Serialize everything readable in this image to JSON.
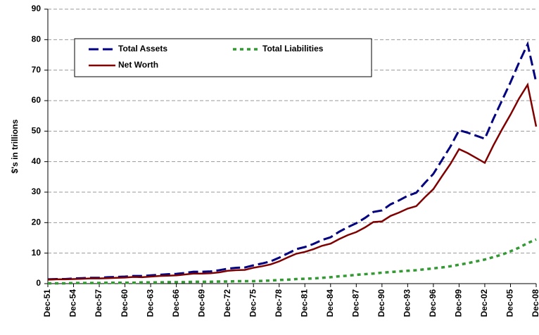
{
  "chart_data": {
    "type": "line",
    "y_label": "$'s in trillions",
    "categories": [
      "Dec-51",
      null,
      null,
      "Dec-54",
      null,
      null,
      "Dec-57",
      null,
      null,
      "Dec-60",
      null,
      null,
      "Dec-63",
      null,
      null,
      "Dec-66",
      null,
      null,
      "Dec-69",
      null,
      null,
      "Dec-72",
      null,
      null,
      "Dec-75",
      null,
      null,
      "Dec-78",
      null,
      null,
      "Dec-81",
      null,
      null,
      "Dec-84",
      null,
      null,
      "Dec-87",
      null,
      null,
      "Dec-90",
      null,
      null,
      "Dec-93",
      null,
      null,
      "Dec-96",
      null,
      null,
      "Dec-99",
      null,
      null,
      "Dec-02",
      null,
      null,
      "Dec-05",
      null,
      null,
      "Dec-08"
    ],
    "series": [
      {
        "name": "Total Assets",
        "color": "#000080",
        "style": "dashed",
        "values": [
          1.4,
          1.5,
          1.5,
          1.7,
          1.8,
          1.9,
          1.9,
          2.1,
          2.2,
          2.3,
          2.5,
          2.5,
          2.7,
          2.9,
          3.1,
          3.2,
          3.5,
          3.9,
          3.9,
          4.0,
          4.4,
          4.9,
          5.2,
          5.3,
          6.0,
          6.6,
          7.3,
          8.5,
          9.9,
          11.3,
          12.0,
          13.0,
          14.3,
          15.2,
          17.0,
          18.5,
          19.8,
          21.5,
          23.5,
          24.0,
          26.0,
          27.3,
          28.8,
          29.8,
          33.0,
          36.0,
          40.5,
          45.0,
          50.3,
          49.5,
          48.5,
          47.5,
          54.0,
          60.0,
          66.0,
          72.5,
          78.5,
          66.0
        ]
      },
      {
        "name": "Total Liabilities",
        "color": "#339933",
        "style": "dotted",
        "values": [
          0.1,
          0.1,
          0.1,
          0.2,
          0.2,
          0.2,
          0.2,
          0.3,
          0.3,
          0.3,
          0.3,
          0.4,
          0.4,
          0.4,
          0.5,
          0.5,
          0.5,
          0.6,
          0.6,
          0.6,
          0.7,
          0.7,
          0.8,
          0.8,
          0.8,
          0.9,
          1.0,
          1.2,
          1.3,
          1.5,
          1.6,
          1.7,
          1.9,
          2.1,
          2.4,
          2.6,
          2.9,
          3.1,
          3.3,
          3.6,
          3.8,
          4.0,
          4.2,
          4.4,
          4.7,
          5.0,
          5.3,
          5.7,
          6.2,
          6.7,
          7.3,
          7.9,
          8.7,
          9.5,
          10.6,
          11.8,
          13.3,
          14.5
        ]
      },
      {
        "name": "Net Worth",
        "color": "#800000",
        "style": "solid",
        "values": [
          1.3,
          1.4,
          1.4,
          1.5,
          1.6,
          1.7,
          1.7,
          1.8,
          1.9,
          2.0,
          2.2,
          2.1,
          2.3,
          2.5,
          2.6,
          2.7,
          3.0,
          3.3,
          3.3,
          3.4,
          3.7,
          4.2,
          4.4,
          4.5,
          5.2,
          5.7,
          6.3,
          7.3,
          8.6,
          9.8,
          10.4,
          11.3,
          12.4,
          13.1,
          14.6,
          15.9,
          16.9,
          18.4,
          20.2,
          20.4,
          22.2,
          23.3,
          24.6,
          25.4,
          28.3,
          31.0,
          35.2,
          39.3,
          44.1,
          42.8,
          41.2,
          39.6,
          45.3,
          50.5,
          55.4,
          60.7,
          65.2,
          51.5
        ]
      }
    ],
    "ylim": [
      0,
      90
    ],
    "yticks": [
      0,
      10,
      20,
      30,
      40,
      50,
      60,
      70,
      80,
      90
    ],
    "grid": true,
    "legend": "upper left"
  }
}
